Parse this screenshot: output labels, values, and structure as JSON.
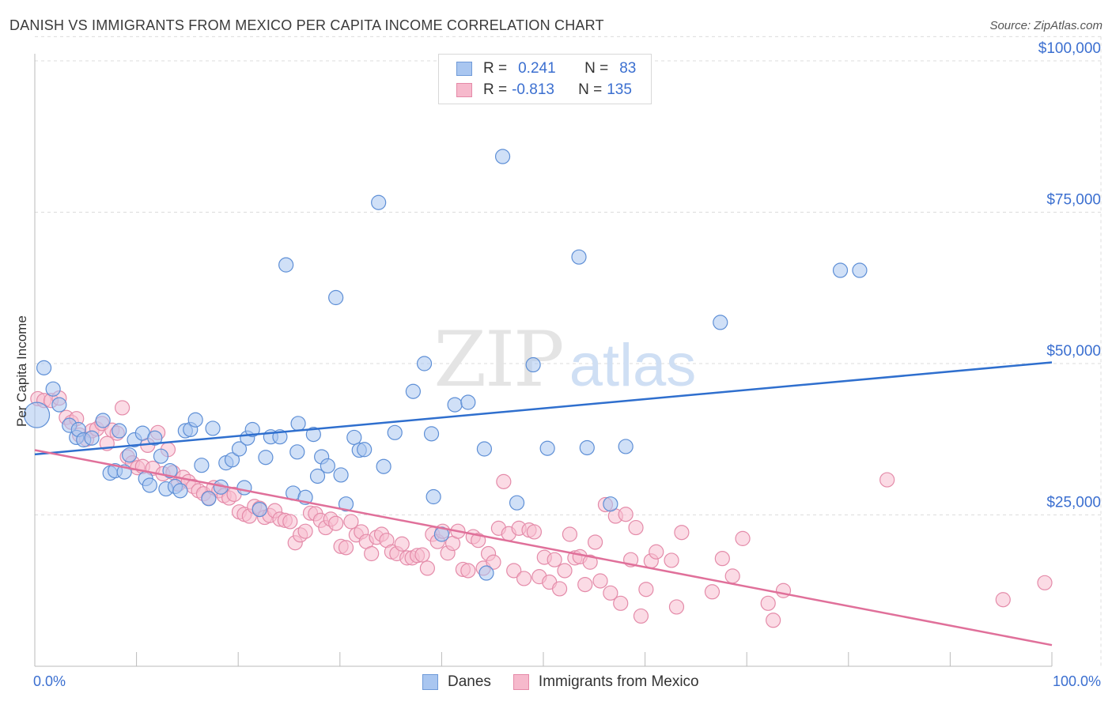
{
  "title": "DANISH VS IMMIGRANTS FROM MEXICO PER CAPITA INCOME CORRELATION CHART",
  "source": "Source: ZipAtlas.com",
  "watermark": {
    "zip": "ZIP",
    "atlas": "atlas"
  },
  "legend_top": [
    {
      "r_label": "R =",
      "r_value": "0.241",
      "n_label": "N =",
      "n_value": "83",
      "color": "#a9c6f0",
      "border": "#6f9ad8"
    },
    {
      "r_label": "R =",
      "r_value": "-0.813",
      "n_label": "N =",
      "n_value": "135",
      "color": "#f6b9cc",
      "border": "#e58aa8"
    }
  ],
  "legend_bottom": [
    {
      "label": "Danes",
      "color": "#a9c6f0",
      "border": "#6f9ad8"
    },
    {
      "label": "Immigrants from Mexico",
      "color": "#f6b9cc",
      "border": "#e58aa8"
    }
  ],
  "x_min_label": "0.0%",
  "x_max_label": "100.0%",
  "ylabel": "Per Capita Income",
  "colors": {
    "danes_fill": "#a9c6f0",
    "danes_stroke": "#5e8fd6",
    "danes_line": "#2f6fce",
    "mex_fill": "#f7bdd0",
    "mex_stroke": "#e48ba9",
    "mex_line": "#e0709a",
    "grid": "#dcdcdc",
    "tick_label": "#3b6fd0"
  },
  "chart_data": {
    "type": "scatter",
    "title": "DANISH VS IMMIGRANTS FROM MEXICO PER CAPITA INCOME CORRELATION CHART",
    "xlabel": "",
    "ylabel": "Per Capita Income",
    "xlim": [
      0,
      100
    ],
    "ylim": [
      0,
      105000
    ],
    "y_ticks": [
      25000,
      50000,
      75000,
      100000
    ],
    "y_tick_labels": [
      "$25,000",
      "$50,000",
      "$75,000",
      "$100,000"
    ],
    "grid": true,
    "series": [
      {
        "name": "Danes",
        "trend": [
          [
            0,
            35000
          ],
          [
            100,
            50200
          ]
        ],
        "points": [
          [
            0.2,
            41500
          ],
          [
            0.9,
            49300
          ],
          [
            1.8,
            45800
          ],
          [
            2.4,
            43200
          ],
          [
            3.4,
            39800
          ],
          [
            4.1,
            37800
          ],
          [
            4.3,
            39100
          ],
          [
            4.8,
            37400
          ],
          [
            5.6,
            37700
          ],
          [
            6.7,
            40600
          ],
          [
            7.4,
            31900
          ],
          [
            7.9,
            32300
          ],
          [
            8.3,
            38900
          ],
          [
            8.8,
            32100
          ],
          [
            9.3,
            34900
          ],
          [
            9.8,
            37400
          ],
          [
            10.6,
            38500
          ],
          [
            10.9,
            31000
          ],
          [
            11.3,
            29900
          ],
          [
            11.8,
            37700
          ],
          [
            12.4,
            34700
          ],
          [
            12.9,
            29300
          ],
          [
            13.3,
            32300
          ],
          [
            13.8,
            29700
          ],
          [
            14.3,
            29000
          ],
          [
            14.8,
            38900
          ],
          [
            15.3,
            39100
          ],
          [
            15.8,
            40700
          ],
          [
            16.4,
            33200
          ],
          [
            17.1,
            27700
          ],
          [
            17.5,
            39300
          ],
          [
            18.3,
            29600
          ],
          [
            18.8,
            33600
          ],
          [
            19.4,
            34100
          ],
          [
            20.1,
            35900
          ],
          [
            20.6,
            29500
          ],
          [
            20.9,
            37700
          ],
          [
            21.4,
            39100
          ],
          [
            22.1,
            25900
          ],
          [
            22.7,
            34500
          ],
          [
            23.2,
            37900
          ],
          [
            24.1,
            37900
          ],
          [
            24.7,
            66300
          ],
          [
            25.4,
            28600
          ],
          [
            25.8,
            35400
          ],
          [
            25.9,
            40100
          ],
          [
            26.6,
            27900
          ],
          [
            27.4,
            38300
          ],
          [
            27.8,
            31400
          ],
          [
            28.2,
            34600
          ],
          [
            28.8,
            33100
          ],
          [
            29.6,
            60900
          ],
          [
            30.1,
            31600
          ],
          [
            30.6,
            26800
          ],
          [
            31.4,
            37800
          ],
          [
            31.9,
            35700
          ],
          [
            32.4,
            35800
          ],
          [
            33.8,
            76600
          ],
          [
            34.3,
            33000
          ],
          [
            35.4,
            38600
          ],
          [
            37.2,
            45400
          ],
          [
            38.3,
            50000
          ],
          [
            39.0,
            38400
          ],
          [
            39.2,
            28000
          ],
          [
            40.0,
            21800
          ],
          [
            41.3,
            43200
          ],
          [
            42.6,
            43600
          ],
          [
            44.2,
            35900
          ],
          [
            44.4,
            15400
          ],
          [
            46.0,
            84200
          ],
          [
            47.4,
            27000
          ],
          [
            49.0,
            49800
          ],
          [
            50.4,
            36000
          ],
          [
            53.5,
            67600
          ],
          [
            54.3,
            36100
          ],
          [
            56.6,
            26800
          ],
          [
            58.1,
            36300
          ],
          [
            67.4,
            56800
          ],
          [
            79.2,
            65400
          ],
          [
            81.1,
            65400
          ]
        ]
      },
      {
        "name": "Immigrants from Mexico",
        "trend": [
          [
            0,
            35700
          ],
          [
            100,
            3500
          ]
        ],
        "points": [
          [
            0.3,
            44200
          ],
          [
            0.9,
            43900
          ],
          [
            1.6,
            43900
          ],
          [
            2.4,
            44300
          ],
          [
            3.1,
            41100
          ],
          [
            3.6,
            40300
          ],
          [
            4.1,
            40900
          ],
          [
            4.4,
            38200
          ],
          [
            5.1,
            37500
          ],
          [
            5.6,
            38900
          ],
          [
            6.1,
            39200
          ],
          [
            6.6,
            40100
          ],
          [
            7.1,
            36800
          ],
          [
            7.6,
            39000
          ],
          [
            8.1,
            38500
          ],
          [
            8.6,
            42700
          ],
          [
            9.1,
            34600
          ],
          [
            9.6,
            33600
          ],
          [
            10.1,
            32800
          ],
          [
            10.6,
            33000
          ],
          [
            11.1,
            36500
          ],
          [
            11.6,
            32700
          ],
          [
            12.1,
            38600
          ],
          [
            12.6,
            31800
          ],
          [
            13.1,
            35800
          ],
          [
            13.6,
            32000
          ],
          [
            14.1,
            30100
          ],
          [
            14.6,
            31200
          ],
          [
            15.1,
            30500
          ],
          [
            15.6,
            29700
          ],
          [
            16.1,
            29000
          ],
          [
            16.6,
            28500
          ],
          [
            17.1,
            27800
          ],
          [
            17.6,
            29500
          ],
          [
            18.1,
            29000
          ],
          [
            18.6,
            28200
          ],
          [
            19.1,
            27800
          ],
          [
            19.6,
            28400
          ],
          [
            20.1,
            25500
          ],
          [
            20.6,
            25100
          ],
          [
            21.1,
            24800
          ],
          [
            21.6,
            26400
          ],
          [
            22.1,
            26100
          ],
          [
            22.6,
            24600
          ],
          [
            23.1,
            24900
          ],
          [
            23.6,
            25700
          ],
          [
            24.1,
            24300
          ],
          [
            24.6,
            24100
          ],
          [
            25.1,
            23900
          ],
          [
            25.6,
            20400
          ],
          [
            26.1,
            21700
          ],
          [
            26.6,
            22300
          ],
          [
            27.1,
            25300
          ],
          [
            27.6,
            25200
          ],
          [
            28.1,
            24100
          ],
          [
            28.6,
            22900
          ],
          [
            29.1,
            24300
          ],
          [
            29.6,
            23600
          ],
          [
            30.1,
            19800
          ],
          [
            30.6,
            19600
          ],
          [
            31.1,
            23900
          ],
          [
            31.6,
            21700
          ],
          [
            32.1,
            22200
          ],
          [
            32.6,
            20600
          ],
          [
            33.1,
            18600
          ],
          [
            33.6,
            21300
          ],
          [
            34.1,
            21800
          ],
          [
            34.6,
            20800
          ],
          [
            35.1,
            18900
          ],
          [
            35.6,
            18600
          ],
          [
            36.1,
            20200
          ],
          [
            36.6,
            17900
          ],
          [
            37.1,
            17900
          ],
          [
            37.6,
            18300
          ],
          [
            38.1,
            18400
          ],
          [
            38.6,
            16200
          ],
          [
            39.1,
            21800
          ],
          [
            39.6,
            20600
          ],
          [
            40.1,
            22300
          ],
          [
            40.6,
            18700
          ],
          [
            41.1,
            20300
          ],
          [
            41.6,
            22300
          ],
          [
            42.1,
            16000
          ],
          [
            42.6,
            15800
          ],
          [
            43.1,
            21400
          ],
          [
            43.6,
            20800
          ],
          [
            44.1,
            16200
          ],
          [
            44.6,
            18600
          ],
          [
            45.1,
            17200
          ],
          [
            45.6,
            22800
          ],
          [
            46.1,
            30500
          ],
          [
            46.6,
            21900
          ],
          [
            47.1,
            15800
          ],
          [
            47.6,
            22800
          ],
          [
            48.1,
            14500
          ],
          [
            48.6,
            22500
          ],
          [
            49.1,
            22200
          ],
          [
            49.6,
            14800
          ],
          [
            50.1,
            18000
          ],
          [
            50.6,
            13900
          ],
          [
            51.1,
            17600
          ],
          [
            51.6,
            12800
          ],
          [
            52.1,
            15800
          ],
          [
            52.6,
            21800
          ],
          [
            53.1,
            17900
          ],
          [
            53.6,
            18100
          ],
          [
            54.1,
            13500
          ],
          [
            54.6,
            17200
          ],
          [
            55.1,
            20500
          ],
          [
            55.6,
            14100
          ],
          [
            56.1,
            26700
          ],
          [
            56.6,
            12100
          ],
          [
            57.1,
            24800
          ],
          [
            57.6,
            10400
          ],
          [
            58.1,
            25100
          ],
          [
            58.6,
            17600
          ],
          [
            59.1,
            22900
          ],
          [
            59.6,
            8300
          ],
          [
            60.1,
            12700
          ],
          [
            60.6,
            17400
          ],
          [
            61.1,
            18900
          ],
          [
            62.6,
            17500
          ],
          [
            63.1,
            9800
          ],
          [
            63.6,
            22100
          ],
          [
            66.6,
            12300
          ],
          [
            67.6,
            17800
          ],
          [
            68.6,
            14900
          ],
          [
            69.6,
            21100
          ],
          [
            72.1,
            10400
          ],
          [
            72.6,
            7600
          ],
          [
            73.6,
            12500
          ],
          [
            83.8,
            30800
          ],
          [
            95.2,
            11000
          ],
          [
            99.3,
            13800
          ]
        ]
      }
    ]
  }
}
